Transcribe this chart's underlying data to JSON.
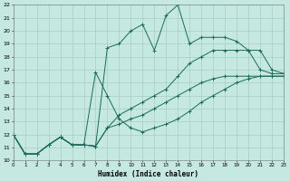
{
  "xlabel": "Humidex (Indice chaleur)",
  "bg_color": "#c5e8e0",
  "line_color": "#1a6b5a",
  "grid_color": "#a8ccc8",
  "xlim": [
    0,
    23
  ],
  "ylim": [
    10,
    22
  ],
  "xtick_vals": [
    0,
    1,
    2,
    3,
    4,
    5,
    6,
    7,
    8,
    9,
    10,
    11,
    12,
    13,
    14,
    15,
    16,
    17,
    18,
    19,
    20,
    21,
    22,
    23
  ],
  "ytick_vals": [
    10,
    11,
    12,
    13,
    14,
    15,
    16,
    17,
    18,
    19,
    20,
    21,
    22
  ],
  "series": [
    [
      12,
      10.5,
      10.5,
      11.2,
      11.8,
      11.2,
      11.2,
      11.1,
      18.7,
      19.0,
      20.0,
      20.5,
      18.5,
      21.2,
      22.0,
      19.0,
      19.5,
      19.5,
      19.5,
      19.2,
      18.5,
      17.0,
      16.7,
      16.7
    ],
    [
      12,
      10.5,
      10.5,
      11.2,
      11.8,
      11.2,
      11.2,
      16.8,
      15.0,
      13.2,
      12.5,
      12.2,
      12.5,
      12.8,
      13.2,
      13.8,
      14.5,
      15.0,
      15.5,
      16.0,
      16.3,
      16.5,
      16.5,
      16.5
    ],
    [
      12,
      10.5,
      10.5,
      11.2,
      11.8,
      11.2,
      11.2,
      11.1,
      12.5,
      12.8,
      13.2,
      13.5,
      14.0,
      14.5,
      15.0,
      15.5,
      16.0,
      16.3,
      16.5,
      16.5,
      16.5,
      16.5,
      16.5,
      16.5
    ],
    [
      12,
      10.5,
      10.5,
      11.2,
      11.8,
      11.2,
      11.2,
      11.1,
      12.5,
      13.5,
      14.0,
      14.5,
      15.0,
      15.5,
      16.5,
      17.5,
      18.0,
      18.5,
      18.5,
      18.5,
      18.5,
      18.5,
      17.0,
      16.7
    ]
  ]
}
